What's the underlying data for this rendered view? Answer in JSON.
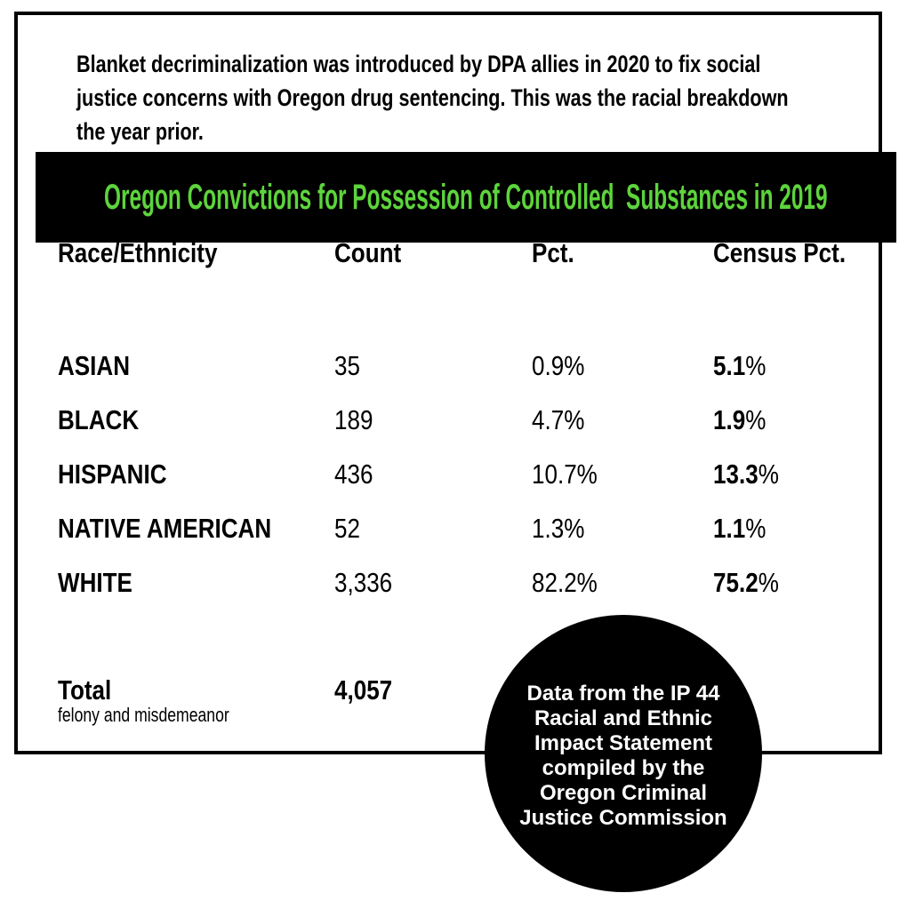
{
  "intro": {
    "lines": [
      "Blanket decriminalization was introduced by DPA allies in 2020 to fix social",
      "justice concerns with Oregon drug sentencing. This was the racial breakdown",
      "the year prior."
    ]
  },
  "banner": {
    "title": "Oregon Convictions for Possession of Controlled  Substances in 2019",
    "bg_color": "#000000",
    "text_color": "#5dd43c"
  },
  "table": {
    "headers": {
      "race": "Race/Ethnicity",
      "count": "Count",
      "pct": "Pct.",
      "census": "Census Pct."
    },
    "rows": [
      {
        "race": "ASIAN",
        "count": "35",
        "pct": "0.9%",
        "census_value": "5.1",
        "percent_sign": "%"
      },
      {
        "race": "BLACK",
        "count": "189",
        "pct": "4.7%",
        "census_value": "1.9",
        "percent_sign": "%"
      },
      {
        "race": "HISPANIC",
        "count": "436",
        "pct": "10.7%",
        "census_value": "13.3",
        "percent_sign": "%"
      },
      {
        "race": "NATIVE AMERICAN",
        "count": "52",
        "pct": "1.3%",
        "census_value": "1.1",
        "percent_sign": "%"
      },
      {
        "race": "WHITE",
        "count": "3,336",
        "pct": "82.2%",
        "census_value": "75.2",
        "percent_sign": "%"
      }
    ],
    "total": {
      "label": "Total",
      "note": "felony and misdemeanor",
      "count": "4,057"
    }
  },
  "badge": {
    "lines": [
      "Data from the IP 44",
      "Racial and Ethnic",
      "Impact Statement",
      "compiled by the",
      "Oregon Criminal",
      "Justice Commission"
    ],
    "bg_color": "#000000",
    "text_color": "#ffffff"
  },
  "colors": {
    "accent_green": "#5dd43c",
    "black": "#000000",
    "white": "#ffffff"
  },
  "chart_data": {
    "type": "table",
    "title": "Oregon Convictions for Possession of Controlled Substances in 2019",
    "subtitle": "Blanket decriminalization was introduced by DPA allies in 2020 to fix social justice concerns with Oregon drug sentencing. This was the racial breakdown the year prior.",
    "columns": [
      "Race/Ethnicity",
      "Count",
      "Pct.",
      "Census Pct."
    ],
    "rows": [
      [
        "ASIAN",
        35,
        "0.9%",
        "5.1%"
      ],
      [
        "BLACK",
        189,
        "4.7%",
        "1.9%"
      ],
      [
        "HISPANIC",
        436,
        "10.7%",
        "13.3%"
      ],
      [
        "NATIVE AMERICAN",
        52,
        "1.3%",
        "1.1%"
      ],
      [
        "WHITE",
        3336,
        "82.2%",
        "75.2%"
      ]
    ],
    "total": {
      "label": "Total",
      "note": "felony and misdemeanor",
      "count": 4057
    },
    "annotation": "Data from the IP 44 Racial and Ethnic Impact Statement compiled by the Oregon Criminal Justice Commission"
  }
}
